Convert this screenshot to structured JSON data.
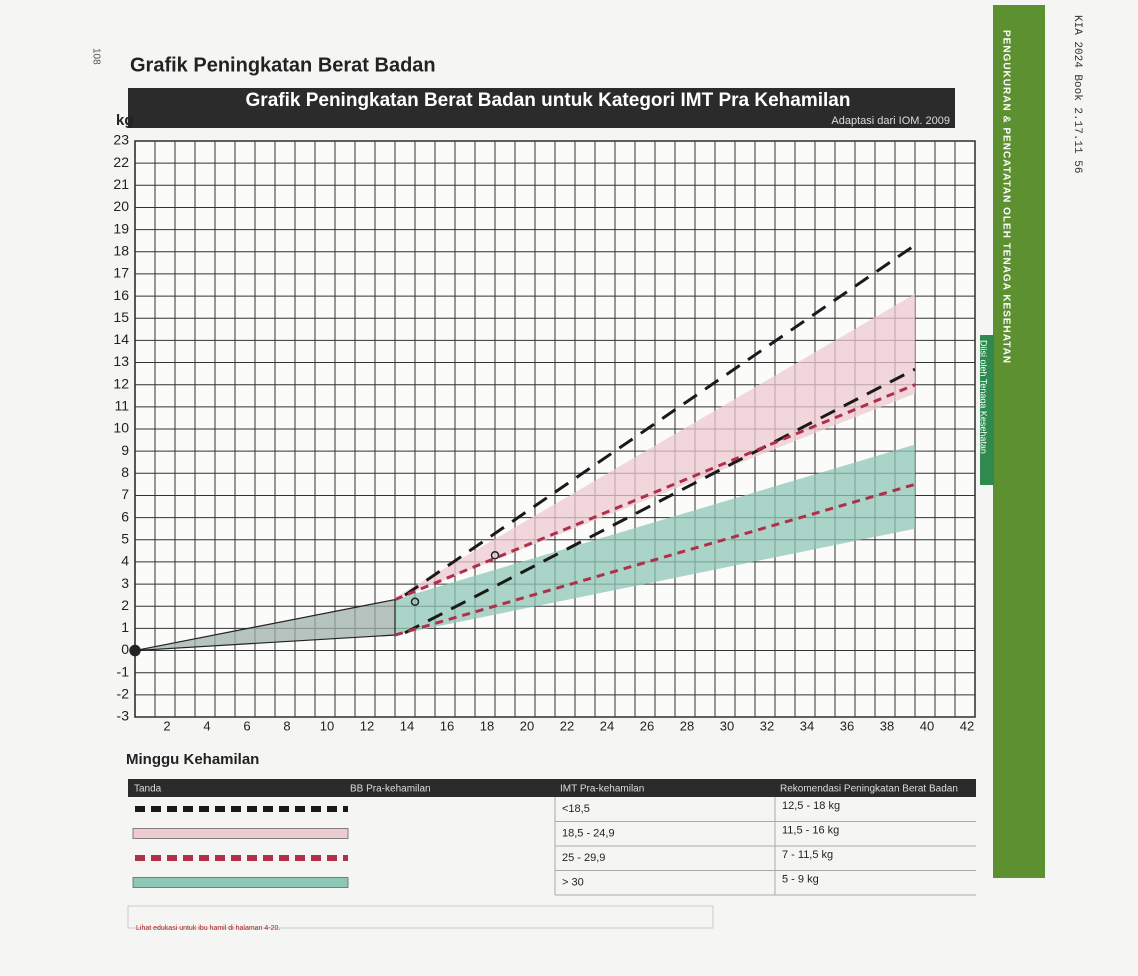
{
  "page": {
    "number": "108",
    "heading": "Grafik Peningkatan Berat Badan",
    "side_title": "PENGUKURAN & PENCATATAN OLEH TENAGA KESEHATAN",
    "side_tag": "Diisi oleh Tenaga Kesehatan",
    "file_label": "KIA 2024 Book 2.17.11 56",
    "note": "Lihat edukasi untuk ibu hamil di halaman 4-20."
  },
  "chart_data": {
    "type": "line",
    "title": "Grafik Peningkatan Berat Badan untuk Kategori IMT Pra Kehamilan",
    "subtitle": "Adaptasi dari IOM. 2009",
    "y_label": "kg",
    "x_label": "Minggu Kehamilan",
    "xlim": [
      0,
      42
    ],
    "ylim": [
      -3,
      23
    ],
    "xticks": [
      2,
      4,
      6,
      8,
      10,
      12,
      14,
      16,
      18,
      20,
      22,
      24,
      26,
      28,
      30,
      32,
      34,
      36,
      38,
      40,
      42
    ],
    "yticks": [
      -3,
      -2,
      -1,
      0,
      1,
      2,
      3,
      4,
      5,
      6,
      7,
      8,
      9,
      10,
      11,
      12,
      13,
      14,
      15,
      16,
      17,
      18,
      19,
      20,
      21,
      22,
      23
    ],
    "grid": true,
    "minor_grid": true,
    "series": [
      {
        "name": "<18,5",
        "recommendation": "12,5 - 18 kg",
        "color": "#1a1a1a",
        "style": "dashed",
        "x": [
          13.5,
          39
        ],
        "lower": [
          0.8,
          12.7
        ],
        "upper": [
          2.5,
          18.3
        ]
      },
      {
        "name": "18,5 - 24,9",
        "recommendation": "11,5 - 16 kg",
        "color": "#eecbd1",
        "style": "band",
        "x": [
          13,
          39
        ],
        "lower": [
          2.3,
          11.6
        ],
        "upper": [
          2.4,
          16.1
        ]
      },
      {
        "name": "25 - 29,9",
        "recommendation": "7 - 11,5 kg",
        "color": "#b0304a",
        "style": "dashed",
        "x": [
          13,
          39
        ],
        "lower": [
          0.7,
          7.5
        ],
        "upper": [
          2.3,
          12
        ]
      },
      {
        "name": "> 30",
        "recommendation": "5 - 9 kg",
        "color": "#8fc7b6",
        "style": "band",
        "x": [
          13,
          39
        ],
        "lower": [
          0.7,
          5.5
        ],
        "upper": [
          2.3,
          9.3
        ]
      },
      {
        "color": "#9fb0aa",
        "style": "band",
        "x": [
          0,
          13
        ],
        "lower": [
          0,
          0.7
        ],
        "upper": [
          0,
          2.3
        ]
      }
    ],
    "points": {
      "x": [
        0,
        14,
        18
      ],
      "values": [
        0,
        2.2,
        4.3
      ],
      "color": "#222222"
    }
  },
  "table": {
    "headers": [
      "Tanda",
      "BB Pra-kehamilan",
      "IMT Pra-kehamilan",
      "Rekomendasi Peningkatan Berat Badan"
    ]
  }
}
